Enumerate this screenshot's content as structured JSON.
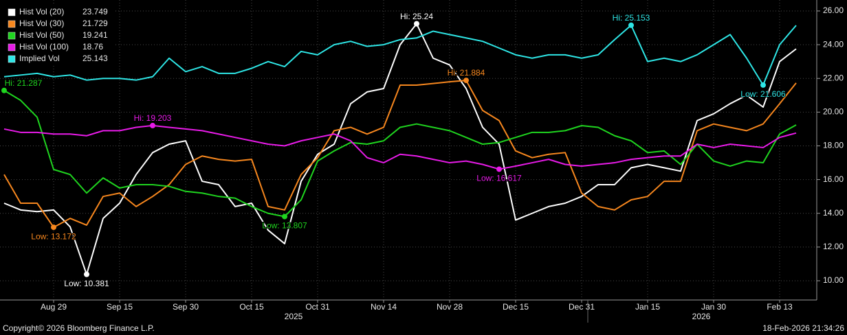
{
  "chart_data": {
    "type": "line",
    "categories": [
      null,
      null,
      null,
      "Aug 29",
      null,
      null,
      null,
      "Sep 15",
      null,
      null,
      null,
      "Sep 30",
      null,
      null,
      null,
      "Oct 15",
      null,
      null,
      null,
      "Oct 31",
      null,
      null,
      null,
      "Nov 14",
      null,
      null,
      null,
      "Nov 28",
      null,
      null,
      null,
      "Dec 15",
      null,
      null,
      null,
      "Dec 31",
      null,
      null,
      null,
      "Jan 15",
      null,
      null,
      null,
      "Jan 30",
      null,
      null,
      null,
      "Feb 13",
      null
    ],
    "year_labels": [
      "2025",
      "2026"
    ],
    "series": [
      {
        "name": "Hist Vol (20)",
        "color": "#ffffff",
        "values": [
          14.6,
          14.2,
          14.1,
          14.2,
          13.2,
          10.381,
          13.7,
          14.6,
          16.3,
          17.6,
          18.1,
          18.3,
          15.9,
          15.7,
          14.4,
          14.6,
          13.0,
          12.2,
          15.9,
          17.5,
          18.1,
          20.5,
          21.2,
          21.4,
          24.0,
          25.24,
          23.2,
          22.8,
          21.4,
          19.1,
          18.1,
          13.6,
          14.0,
          14.4,
          14.6,
          15.0,
          15.7,
          15.7,
          16.7,
          16.9,
          16.7,
          16.5,
          19.5,
          19.9,
          20.5,
          21.0,
          20.3,
          23.0,
          23.749
        ],
        "high": {
          "label": "Hi: 25.24",
          "value": 25.24
        },
        "low": {
          "label": "Low: 10.381",
          "value": 10.381
        }
      },
      {
        "name": "Hist Vol (30)",
        "color": "#f7871e",
        "values": [
          16.3,
          14.6,
          14.6,
          13.172,
          13.7,
          13.3,
          15.0,
          15.2,
          14.4,
          15.0,
          15.7,
          16.9,
          17.4,
          17.2,
          17.1,
          17.2,
          14.4,
          14.2,
          16.3,
          17.3,
          18.9,
          19.1,
          18.7,
          19.1,
          21.6,
          21.6,
          21.7,
          21.8,
          21.884,
          20.1,
          19.5,
          17.7,
          17.3,
          17.5,
          17.6,
          15.2,
          14.4,
          14.2,
          14.8,
          15.0,
          15.9,
          15.9,
          18.9,
          19.3,
          19.1,
          18.9,
          19.3,
          20.5,
          21.729
        ],
        "high": {
          "label": "Hi: 21.884",
          "value": 21.884
        },
        "low": {
          "label": "Low: 13.172",
          "value": 13.172
        }
      },
      {
        "name": "Hist Vol (50)",
        "color": "#1fd51f",
        "values": [
          21.287,
          20.7,
          19.7,
          16.6,
          16.3,
          15.2,
          16.1,
          15.5,
          15.7,
          15.7,
          15.6,
          15.3,
          15.2,
          15.0,
          14.9,
          14.4,
          14.0,
          13.807,
          14.8,
          17.1,
          17.7,
          18.2,
          18.1,
          18.3,
          19.1,
          19.3,
          19.1,
          18.9,
          18.5,
          18.1,
          18.2,
          18.5,
          18.8,
          18.8,
          18.9,
          19.2,
          19.1,
          18.6,
          18.3,
          17.6,
          17.7,
          16.9,
          18.1,
          17.1,
          16.8,
          17.1,
          17.0,
          18.7,
          19.241
        ],
        "high": {
          "label": "Hi: 21.287",
          "value": 21.287
        },
        "low": {
          "label": "Low: 13.807",
          "value": 13.807
        }
      },
      {
        "name": "Hist Vol (100)",
        "color": "#e81be8",
        "values": [
          19.0,
          18.8,
          18.8,
          18.7,
          18.7,
          18.6,
          18.9,
          18.9,
          19.1,
          19.203,
          19.1,
          19.0,
          18.9,
          18.7,
          18.5,
          18.3,
          18.1,
          18.0,
          18.3,
          18.5,
          18.7,
          18.3,
          17.3,
          17.0,
          17.5,
          17.4,
          17.2,
          17.0,
          17.1,
          16.9,
          16.617,
          16.8,
          17.0,
          17.2,
          16.9,
          16.8,
          16.9,
          17.0,
          17.2,
          17.3,
          17.4,
          17.4,
          18.1,
          17.9,
          18.1,
          18.0,
          17.9,
          18.5,
          18.76
        ],
        "high": {
          "label": "Hi: 19.203",
          "value": 19.203
        },
        "low": {
          "label": "Low: 16.617",
          "value": 16.617
        }
      },
      {
        "name": "Implied Vol",
        "color": "#2ee6e6",
        "values": [
          22.1,
          22.2,
          22.3,
          22.1,
          22.2,
          21.9,
          22.0,
          22.0,
          21.9,
          22.1,
          23.2,
          22.4,
          22.7,
          22.3,
          22.3,
          22.6,
          23.0,
          22.7,
          23.6,
          23.4,
          24.0,
          24.2,
          23.9,
          24.0,
          24.3,
          24.4,
          24.8,
          24.6,
          24.4,
          24.2,
          23.8,
          23.4,
          23.2,
          23.4,
          23.4,
          23.2,
          23.4,
          24.3,
          25.153,
          23.0,
          23.2,
          23.0,
          23.4,
          24.0,
          24.6,
          23.2,
          21.606,
          24.0,
          25.143
        ],
        "high": {
          "label": "Hi: 25.153",
          "value": 25.153
        },
        "low": {
          "label": "Low: 21.606",
          "value": 21.606
        }
      }
    ],
    "ylim": [
      8.86,
      26.65
    ],
    "yticks": [
      {
        "value": 10,
        "label": "10.00"
      },
      {
        "value": 12,
        "label": "12.00"
      },
      {
        "value": 14,
        "label": "14.00"
      },
      {
        "value": 16,
        "label": "16.00"
      },
      {
        "value": 18,
        "label": "18.00"
      },
      {
        "value": 20,
        "label": "20.00"
      },
      {
        "value": 22,
        "label": "22.00"
      },
      {
        "value": 24,
        "label": "24.00"
      },
      {
        "value": 26,
        "label": "26.00"
      }
    ],
    "grid": true,
    "legend": "top-left"
  },
  "footer": {
    "copyright": "Copyright© 2026 Bloomberg Finance L.P.",
    "timestamp": "18-Feb-2026 21:34:26"
  }
}
